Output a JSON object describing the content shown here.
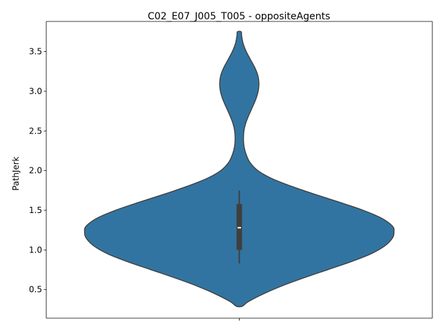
{
  "chart_data": {
    "type": "violin",
    "title": "C02_E07_J005_T005 - oppositeAgents",
    "xlabel": "",
    "ylabel": "PathJerk",
    "ylim": [
      0.14,
      3.88
    ],
    "yticks": [
      0.5,
      1.0,
      1.5,
      2.0,
      2.5,
      3.0,
      3.5
    ],
    "ytick_labels": [
      "0.5",
      "1.0",
      "1.5",
      "2.0",
      "2.5",
      "3.0",
      "3.5"
    ],
    "grid": false,
    "legend": "none",
    "series": [
      {
        "color": "#3274a1",
        "range": [
          0.29,
          3.75
        ],
        "density_profile": [
          {
            "y": 0.29,
            "w": 0.018
          },
          {
            "y": 0.35,
            "w": 0.06
          },
          {
            "y": 0.45,
            "w": 0.16
          },
          {
            "y": 0.55,
            "w": 0.28
          },
          {
            "y": 0.65,
            "w": 0.42
          },
          {
            "y": 0.75,
            "w": 0.57
          },
          {
            "y": 0.85,
            "w": 0.72
          },
          {
            "y": 0.95,
            "w": 0.85
          },
          {
            "y": 1.05,
            "w": 0.94
          },
          {
            "y": 1.15,
            "w": 0.99
          },
          {
            "y": 1.23,
            "w": 1.0
          },
          {
            "y": 1.3,
            "w": 0.99
          },
          {
            "y": 1.4,
            "w": 0.92
          },
          {
            "y": 1.5,
            "w": 0.8
          },
          {
            "y": 1.6,
            "w": 0.65
          },
          {
            "y": 1.7,
            "w": 0.49
          },
          {
            "y": 1.8,
            "w": 0.34
          },
          {
            "y": 1.9,
            "w": 0.21
          },
          {
            "y": 2.0,
            "w": 0.12
          },
          {
            "y": 2.1,
            "w": 0.07
          },
          {
            "y": 2.2,
            "w": 0.045
          },
          {
            "y": 2.3,
            "w": 0.031
          },
          {
            "y": 2.4,
            "w": 0.027
          },
          {
            "y": 2.5,
            "w": 0.03
          },
          {
            "y": 2.6,
            "w": 0.042
          },
          {
            "y": 2.7,
            "w": 0.062
          },
          {
            "y": 2.8,
            "w": 0.085
          },
          {
            "y": 2.9,
            "w": 0.107
          },
          {
            "y": 3.0,
            "w": 0.122
          },
          {
            "y": 3.1,
            "w": 0.127
          },
          {
            "y": 3.2,
            "w": 0.12
          },
          {
            "y": 3.3,
            "w": 0.1
          },
          {
            "y": 3.4,
            "w": 0.072
          },
          {
            "y": 3.5,
            "w": 0.045
          },
          {
            "y": 3.6,
            "w": 0.025
          },
          {
            "y": 3.7,
            "w": 0.015
          },
          {
            "y": 3.75,
            "w": 0.012
          }
        ],
        "box": {
          "whisker_low": 0.83,
          "q1": 1.0,
          "median": 1.28,
          "q3": 1.58,
          "whisker_high": 1.75
        }
      }
    ]
  }
}
